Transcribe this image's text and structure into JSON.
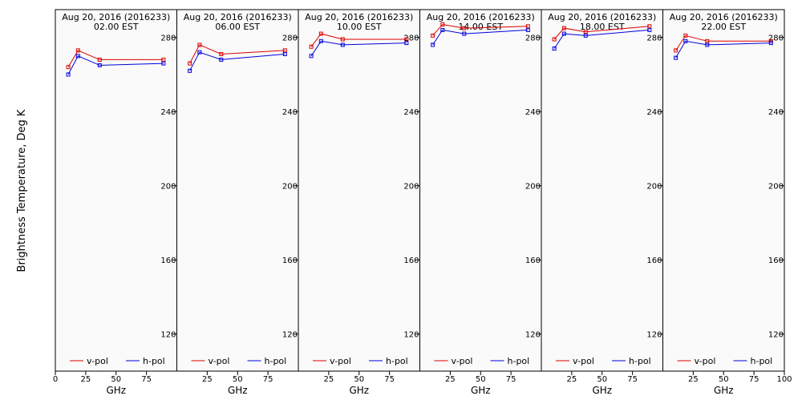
{
  "ylabel": "Brightness Temperature, Deg K",
  "colors": {
    "v_pol": "#dd0000",
    "h_pol": "#0000dd",
    "panel_bg": "#fafafa"
  },
  "chart_data": [
    {
      "type": "line",
      "title": "Aug 20, 2016 (2016233)",
      "subtitle": "02.00 EST",
      "xlabel": "GHz",
      "x": [
        10.65,
        18.7,
        36.5,
        89.0
      ],
      "series": [
        {
          "name": "v-pol",
          "values": [
            264,
            273,
            268,
            268
          ]
        },
        {
          "name": "h-pol",
          "values": [
            260,
            270,
            265,
            266
          ]
        }
      ],
      "xlim": [
        0,
        100
      ],
      "ylim": [
        100,
        295
      ],
      "xticks": [
        0,
        25,
        50,
        75
      ],
      "yticks": [
        280,
        240,
        200,
        160,
        120
      ],
      "legend": "bottom"
    },
    {
      "type": "line",
      "title": "Aug 20, 2016 (2016233)",
      "subtitle": "06.00 EST",
      "xlabel": "GHz",
      "x": [
        10.65,
        18.7,
        36.5,
        89.0
      ],
      "series": [
        {
          "name": "v-pol",
          "values": [
            266,
            276,
            271,
            273
          ]
        },
        {
          "name": "h-pol",
          "values": [
            262,
            272,
            268,
            271
          ]
        }
      ],
      "xlim": [
        0,
        100
      ],
      "ylim": [
        100,
        295
      ],
      "xticks": [
        25,
        50,
        75
      ],
      "yticks": [
        280,
        240,
        200,
        160,
        120
      ],
      "legend": "bottom"
    },
    {
      "type": "line",
      "title": "Aug 20, 2016 (2016233)",
      "subtitle": "10.00 EST",
      "xlabel": "GHz",
      "x": [
        10.65,
        18.7,
        36.5,
        89.0
      ],
      "series": [
        {
          "name": "v-pol",
          "values": [
            275,
            282,
            279,
            279
          ]
        },
        {
          "name": "h-pol",
          "values": [
            270,
            278,
            276,
            277
          ]
        }
      ],
      "xlim": [
        0,
        100
      ],
      "ylim": [
        100,
        295
      ],
      "xticks": [
        25,
        50,
        75
      ],
      "yticks": [
        280,
        240,
        200,
        160,
        120
      ],
      "legend": "bottom"
    },
    {
      "type": "line",
      "title": "Aug 20, 2016 (2016233)",
      "subtitle": "14.00 EST",
      "xlabel": "GHz",
      "x": [
        10.65,
        18.7,
        36.5,
        89.0
      ],
      "series": [
        {
          "name": "v-pol",
          "values": [
            281,
            287,
            285,
            286
          ]
        },
        {
          "name": "h-pol",
          "values": [
            276,
            284,
            282,
            284
          ]
        }
      ],
      "xlim": [
        0,
        100
      ],
      "ylim": [
        100,
        295
      ],
      "xticks": [
        25,
        50,
        75
      ],
      "yticks": [
        280,
        240,
        200,
        160,
        120
      ],
      "legend": "bottom"
    },
    {
      "type": "line",
      "title": "Aug 20, 2016 (2016233)",
      "subtitle": "18.00 EST",
      "xlabel": "GHz",
      "x": [
        10.65,
        18.7,
        36.5,
        89.0
      ],
      "series": [
        {
          "name": "v-pol",
          "values": [
            279,
            285,
            283,
            286
          ]
        },
        {
          "name": "h-pol",
          "values": [
            274,
            282,
            281,
            284
          ]
        }
      ],
      "xlim": [
        0,
        100
      ],
      "ylim": [
        100,
        295
      ],
      "xticks": [
        25,
        50,
        75
      ],
      "yticks": [
        280,
        240,
        200,
        160,
        120
      ],
      "legend": "bottom"
    },
    {
      "type": "line",
      "title": "Aug 20, 2016 (2016233)",
      "subtitle": "22.00 EST",
      "xlabel": "GHz",
      "x": [
        10.65,
        18.7,
        36.5,
        89.0
      ],
      "series": [
        {
          "name": "v-pol",
          "values": [
            273,
            281,
            278,
            278
          ]
        },
        {
          "name": "h-pol",
          "values": [
            269,
            278,
            276,
            277
          ]
        }
      ],
      "xlim": [
        0,
        100
      ],
      "ylim": [
        100,
        295
      ],
      "xticks": [
        25,
        50,
        75,
        100
      ],
      "yticks": [
        280,
        240,
        200,
        160,
        120
      ],
      "legend": "bottom"
    }
  ]
}
